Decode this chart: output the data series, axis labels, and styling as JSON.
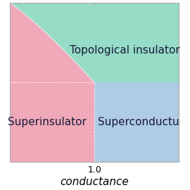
{
  "xlabel": "conductance",
  "xlabel_fontsize": 11,
  "xtick_label": "1.0",
  "xtick_pos": 1.0,
  "xlim": [
    0,
    2
  ],
  "ylim": [
    0,
    2
  ],
  "regions": {
    "superinsulator": {
      "label": "Superinsulator",
      "color": "#e87b93",
      "alpha": 0.65,
      "fontsize": 11
    },
    "superconductor": {
      "label": "Superconductu",
      "color": "#7aaad4",
      "alpha": 0.6,
      "fontsize": 11
    },
    "topological": {
      "label": "Topological insulator",
      "color": "#6ecfb2",
      "alpha": 0.72,
      "fontsize": 11
    }
  },
  "boundary_x": 1.0,
  "boundary_y": 1.0,
  "curve_control_x": 0.35,
  "curve_control_y": 1.75
}
